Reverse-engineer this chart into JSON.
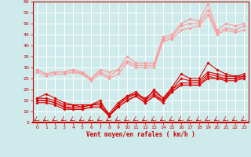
{
  "xlabel": "Vent moyen/en rafales ( km/h )",
  "xlim": [
    -0.5,
    23.5
  ],
  "ylim": [
    5,
    60
  ],
  "yticks": [
    5,
    10,
    15,
    20,
    25,
    30,
    35,
    40,
    45,
    50,
    55,
    60
  ],
  "xticks": [
    0,
    1,
    2,
    3,
    4,
    5,
    6,
    7,
    8,
    9,
    10,
    11,
    12,
    13,
    14,
    15,
    16,
    17,
    18,
    19,
    20,
    21,
    22,
    23
  ],
  "background_color": "#ceeaea",
  "grid_color": "#ffffff",
  "lines_dark": [
    [
      16,
      18,
      16,
      14,
      13,
      13,
      13,
      15,
      8,
      13,
      17,
      19,
      15,
      20,
      16,
      21,
      27,
      25,
      25,
      32,
      29,
      27,
      26,
      27
    ],
    [
      16,
      16,
      15,
      13,
      13,
      12,
      13,
      14,
      9,
      14,
      17,
      18,
      16,
      19,
      16,
      20,
      25,
      24,
      24,
      28,
      27,
      26,
      26,
      26
    ],
    [
      15,
      15,
      14,
      12,
      12,
      12,
      13,
      13,
      8,
      13,
      16,
      18,
      15,
      18,
      15,
      20,
      23,
      23,
      23,
      27,
      26,
      25,
      25,
      26
    ],
    [
      15,
      15,
      14,
      12,
      11,
      11,
      12,
      12,
      8,
      12,
      15,
      17,
      14,
      17,
      15,
      19,
      22,
      22,
      22,
      26,
      25,
      25,
      25,
      25
    ],
    [
      14,
      14,
      13,
      11,
      11,
      11,
      12,
      12,
      8,
      12,
      15,
      17,
      14,
      17,
      14,
      19,
      22,
      22,
      22,
      25,
      25,
      24,
      24,
      25
    ]
  ],
  "lines_light": [
    [
      29,
      27,
      28,
      28,
      29,
      28,
      25,
      29,
      28,
      29,
      35,
      32,
      32,
      32,
      44,
      45,
      50,
      52,
      51,
      59,
      47,
      50,
      49,
      50
    ],
    [
      29,
      27,
      28,
      28,
      29,
      27,
      25,
      28,
      26,
      29,
      33,
      31,
      31,
      31,
      43,
      44,
      49,
      50,
      50,
      56,
      46,
      48,
      47,
      49
    ],
    [
      28,
      26,
      27,
      27,
      28,
      27,
      24,
      27,
      25,
      27,
      32,
      30,
      30,
      30,
      42,
      43,
      47,
      48,
      49,
      54,
      45,
      47,
      46,
      47
    ]
  ],
  "line_dark_color": "#dd0000",
  "line_light_color": "#ff9999",
  "marker_size": 1.8,
  "line_width": 0.8
}
